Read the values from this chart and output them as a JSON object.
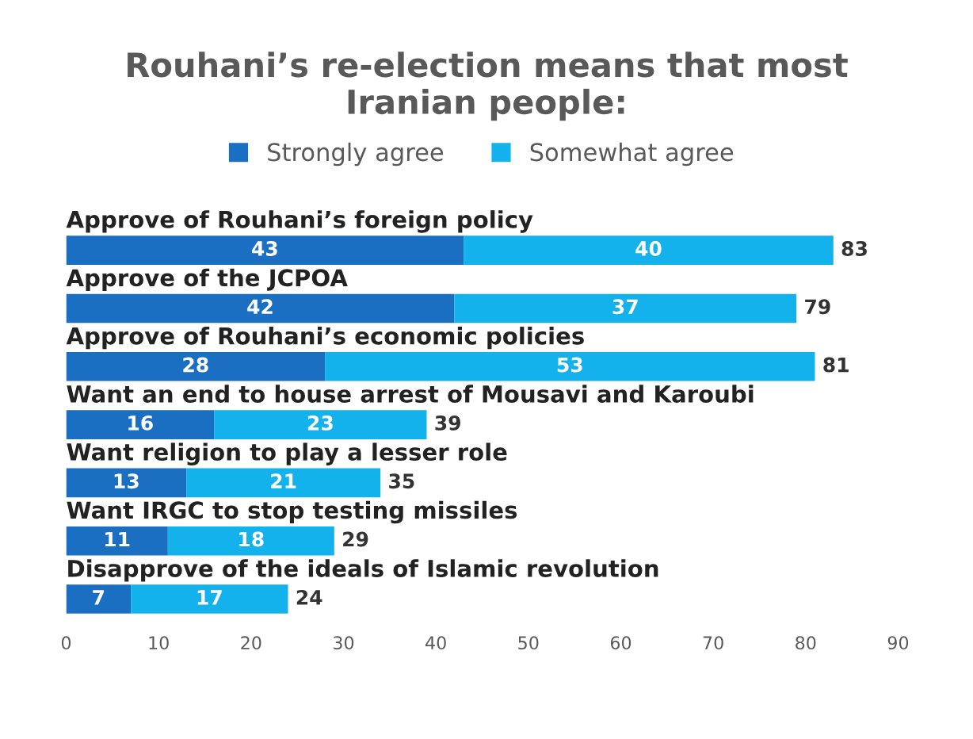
{
  "chart_data": {
    "type": "bar",
    "orientation": "horizontal",
    "stacked": true,
    "title": "Rouhani’s re-election means that most\nIranian people:",
    "categories": [
      "Approve of Rouhani’s foreign policy",
      "Approve of the JCPOA",
      "Approve of Rouhani’s economic policies",
      "Want an end to house arrest of Mousavi and Karoubi",
      "Want religion to play a lesser role",
      "Want IRGC to stop testing missiles",
      "Disapprove of the ideals of Islamic revolution"
    ],
    "series": [
      {
        "name": "Strongly agree",
        "color": "#1b6fc2",
        "values": [
          43,
          42,
          28,
          16,
          13,
          11,
          7
        ]
      },
      {
        "name": "Somewhat agree",
        "color": "#14b2ec",
        "values": [
          40,
          37,
          53,
          23,
          21,
          18,
          17
        ]
      }
    ],
    "totals": [
      "83",
      "79",
      "81",
      "39",
      "35",
      "29",
      "24"
    ],
    "data_labels": true,
    "xlim": [
      0,
      90
    ],
    "xticks": [
      0,
      10,
      20,
      30,
      40,
      50,
      60,
      70,
      80,
      90
    ],
    "legend": "top",
    "grid": false
  }
}
